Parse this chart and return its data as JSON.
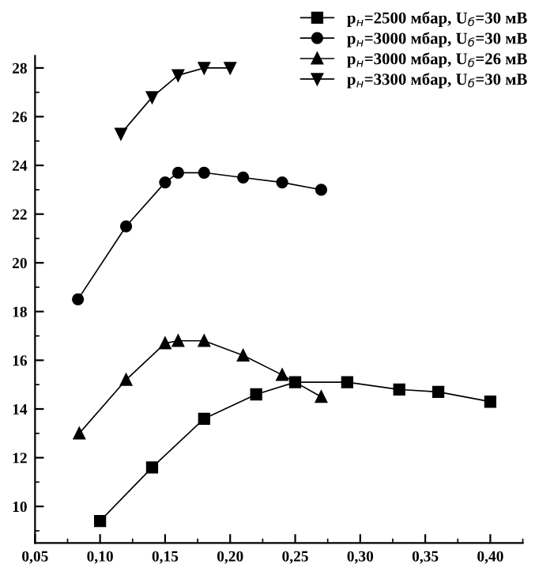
{
  "chart_data": {
    "type": "line",
    "xlim": [
      0.05,
      0.425
    ],
    "ylim": [
      8.5,
      28.5
    ],
    "xticks": [
      {
        "value": 0.05,
        "label": "0,05"
      },
      {
        "value": 0.1,
        "label": "0,10"
      },
      {
        "value": 0.15,
        "label": "0,15"
      },
      {
        "value": 0.2,
        "label": "0,20"
      },
      {
        "value": 0.25,
        "label": "0,25"
      },
      {
        "value": 0.3,
        "label": "0,30"
      },
      {
        "value": 0.35,
        "label": "0,35"
      },
      {
        "value": 0.4,
        "label": "0,40"
      }
    ],
    "yticks": [
      10,
      12,
      14,
      16,
      18,
      20,
      22,
      24,
      26,
      28
    ],
    "legend": "top right",
    "grid": false,
    "line_style": "solid",
    "series": [
      {
        "name": "p$_{н}$=2500 мбар, U$_{б}$=30 мВ",
        "color": "#000000",
        "marker": "square",
        "x": [
          0.1,
          0.14,
          0.18,
          0.22,
          0.25,
          0.29,
          0.33,
          0.36,
          0.4
        ],
        "values": [
          9.4,
          11.6,
          13.6,
          14.6,
          15.1,
          15.1,
          14.8,
          14.7,
          14.3
        ]
      },
      {
        "name": "p$_{н}$=3000 мбар, U$_{б}$=30 мВ",
        "color": "#000000",
        "marker": "circle",
        "x": [
          0.083,
          0.12,
          0.15,
          0.16,
          0.18,
          0.21,
          0.24,
          0.27
        ],
        "values": [
          18.5,
          21.5,
          23.3,
          23.7,
          23.7,
          23.5,
          23.3,
          23.0
        ]
      },
      {
        "name": "p$_{н}$=3000 мбар, U$_{б}$=26 мВ",
        "color": "#000000",
        "marker": "triangle",
        "x": [
          0.084,
          0.12,
          0.15,
          0.16,
          0.18,
          0.21,
          0.24,
          0.27
        ],
        "values": [
          13.0,
          15.2,
          16.7,
          16.8,
          16.8,
          16.2,
          15.4,
          14.5
        ]
      },
      {
        "name": "p$_{н}$=3300 мбар, U$_{б}$=30 мВ",
        "color": "#000000",
        "marker": "triangle_down",
        "x": [
          0.116,
          0.14,
          0.16,
          0.18,
          0.2
        ],
        "values": [
          25.3,
          26.8,
          27.7,
          28.0,
          28.0
        ]
      }
    ]
  }
}
